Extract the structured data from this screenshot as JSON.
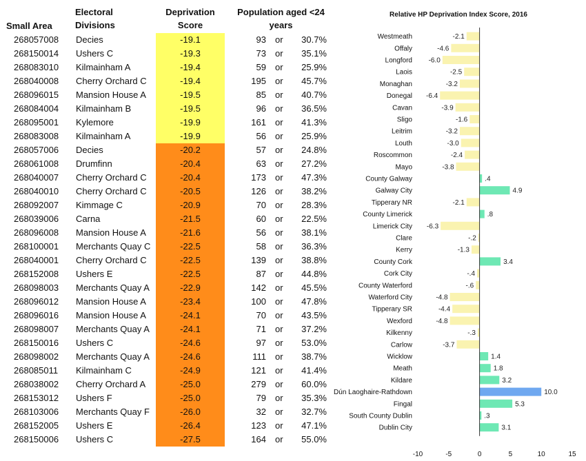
{
  "table": {
    "headers": {
      "small_area": "Small Area",
      "ed_line1": "Electoral",
      "ed_line2": "Divisions",
      "dep_line1": "Deprivation",
      "dep_line2": "Score",
      "pop_line1": "Population aged <24",
      "pop_line2": "years"
    },
    "or_text": "or",
    "highlight_colors": {
      "yellow": "#FFFF66",
      "orange": "#FF8C1A"
    },
    "rows": [
      {
        "area": "268057008",
        "ed": "Decies",
        "score": "-19.1",
        "pop": "93",
        "pct": "30.7%",
        "band": "yellow"
      },
      {
        "area": "268150014",
        "ed": "Ushers C",
        "score": "-19.3",
        "pop": "73",
        "pct": "35.1%",
        "band": "yellow"
      },
      {
        "area": "268083010",
        "ed": "Kilmainham A",
        "score": "-19.4",
        "pop": "59",
        "pct": "25.9%",
        "band": "yellow"
      },
      {
        "area": "268040008",
        "ed": "Cherry Orchard C",
        "score": "-19.4",
        "pop": "195",
        "pct": "45.7%",
        "band": "yellow"
      },
      {
        "area": "268096015",
        "ed": "Mansion House A",
        "score": "-19.5",
        "pop": "85",
        "pct": "40.7%",
        "band": "yellow"
      },
      {
        "area": "268084004",
        "ed": "Kilmainham B",
        "score": "-19.5",
        "pop": "96",
        "pct": "36.5%",
        "band": "yellow"
      },
      {
        "area": "268095001",
        "ed": "Kylemore",
        "score": "-19.9",
        "pop": "161",
        "pct": "41.3%",
        "band": "yellow"
      },
      {
        "area": "268083008",
        "ed": "Kilmainham A",
        "score": "-19.9",
        "pop": "56",
        "pct": "25.9%",
        "band": "yellow"
      },
      {
        "area": "268057006",
        "ed": "Decies",
        "score": "-20.2",
        "pop": "57",
        "pct": "24.8%",
        "band": "orange"
      },
      {
        "area": "268061008",
        "ed": "Drumfinn",
        "score": "-20.4",
        "pop": "63",
        "pct": "27.2%",
        "band": "orange"
      },
      {
        "area": "268040007",
        "ed": "Cherry Orchard C",
        "score": "-20.4",
        "pop": "173",
        "pct": "47.3%",
        "band": "orange"
      },
      {
        "area": "268040010",
        "ed": "Cherry Orchard C",
        "score": "-20.5",
        "pop": "126",
        "pct": "38.2%",
        "band": "orange"
      },
      {
        "area": "268092007",
        "ed": "Kimmage C",
        "score": "-20.9",
        "pop": "70",
        "pct": "28.3%",
        "band": "orange"
      },
      {
        "area": "268039006",
        "ed": "Carna",
        "score": "-21.5",
        "pop": "60",
        "pct": "22.5%",
        "band": "orange"
      },
      {
        "area": "268096008",
        "ed": "Mansion House A",
        "score": "-21.6",
        "pop": "56",
        "pct": "38.1%",
        "band": "orange"
      },
      {
        "area": "268100001",
        "ed": "Merchants Quay C",
        "score": "-22.5",
        "pop": "58",
        "pct": "36.3%",
        "band": "orange"
      },
      {
        "area": "268040001",
        "ed": "Cherry Orchard C",
        "score": "-22.5",
        "pop": "139",
        "pct": "38.8%",
        "band": "orange"
      },
      {
        "area": "268152008",
        "ed": "Ushers E",
        "score": "-22.5",
        "pop": "87",
        "pct": "44.8%",
        "band": "orange"
      },
      {
        "area": "268098003",
        "ed": "Merchants Quay A",
        "score": "-22.9",
        "pop": "142",
        "pct": "45.5%",
        "band": "orange"
      },
      {
        "area": "268096012",
        "ed": "Mansion House A",
        "score": "-23.4",
        "pop": "100",
        "pct": "47.8%",
        "band": "orange"
      },
      {
        "area": "268096016",
        "ed": "Mansion House A",
        "score": "-24.1",
        "pop": "70",
        "pct": "43.5%",
        "band": "orange"
      },
      {
        "area": "268098007",
        "ed": "Merchants Quay A",
        "score": "-24.1",
        "pop": "71",
        "pct": "37.2%",
        "band": "orange"
      },
      {
        "area": "268150016",
        "ed": "Ushers C",
        "score": "-24.6",
        "pop": "97",
        "pct": "53.0%",
        "band": "orange"
      },
      {
        "area": "268098002",
        "ed": "Merchants Quay A",
        "score": "-24.6",
        "pop": "111",
        "pct": "38.7%",
        "band": "orange"
      },
      {
        "area": "268085011",
        "ed": "Kilmainham C",
        "score": "-24.9",
        "pop": "121",
        "pct": "41.4%",
        "band": "orange"
      },
      {
        "area": "268038002",
        "ed": "Cherry Orchard A",
        "score": "-25.0",
        "pop": "279",
        "pct": "60.0%",
        "band": "orange"
      },
      {
        "area": "268153012",
        "ed": "Ushers F",
        "score": "-25.0",
        "pop": "79",
        "pct": "35.3%",
        "band": "orange"
      },
      {
        "area": "268103006",
        "ed": "Merchants Quay F",
        "score": "-26.0",
        "pop": "32",
        "pct": "32.7%",
        "band": "orange"
      },
      {
        "area": "268152005",
        "ed": "Ushers E",
        "score": "-26.4",
        "pop": "123",
        "pct": "47.1%",
        "band": "orange"
      },
      {
        "area": "268150006",
        "ed": "Ushers C",
        "score": "-27.5",
        "pop": "164",
        "pct": "55.0%",
        "band": "orange"
      }
    ]
  },
  "chart_data": {
    "type": "bar",
    "orientation": "horizontal",
    "title": "Relative HP Deprivation Index Score, 2016",
    "xlim": [
      -10,
      15
    ],
    "xticks": [
      "-10",
      "-5",
      "0",
      "5",
      "10",
      "15"
    ],
    "grid": false,
    "colors": {
      "negative": "#FAF3B0",
      "positive": "#6EE8B4",
      "highlight": "#6FA8F0"
    },
    "categories": [
      "Westmeath",
      "Offaly",
      "Longford",
      "Laois",
      "Monaghan",
      "Donegal",
      "Cavan",
      "Sligo",
      "Leitrim",
      "Louth",
      "Roscommon",
      "Mayo",
      "County Galway",
      "Galway City",
      "Tipperary NR",
      "County Limerick",
      "Limerick City",
      "Clare",
      "Kerry",
      "County Cork",
      "Cork City",
      "County Waterford",
      "Waterford City",
      "Tipperary SR",
      "Wexford",
      "Kilkenny",
      "Carlow",
      "Wicklow",
      "Meath",
      "Kildare",
      "Dún Laoghaire-Rathdown",
      "Fingal",
      "South County Dublin",
      "Dublin City"
    ],
    "values": [
      -2.1,
      -4.6,
      -6.0,
      -2.5,
      -3.2,
      -6.4,
      -3.9,
      -1.6,
      -3.2,
      -3.0,
      -2.4,
      -3.8,
      0.4,
      4.9,
      -2.1,
      0.8,
      -6.3,
      -0.2,
      -1.3,
      3.4,
      -0.4,
      -0.6,
      -4.8,
      -4.4,
      -4.8,
      -0.3,
      -3.7,
      1.4,
      1.8,
      3.2,
      10.0,
      5.3,
      0.3,
      3.1
    ],
    "value_labels": [
      "-2.1",
      "-4.6",
      "-6.0",
      "-2.5",
      "-3.2",
      "-6.4",
      "-3.9",
      "-1.6",
      "-3.2",
      "-3.0",
      "-2.4",
      "-3.8",
      ".4",
      "4.9",
      "-2.1",
      ".8",
      "-6.3",
      "-.2",
      "-1.3",
      "3.4",
      "-.4",
      "-.6",
      "-4.8",
      "-4.4",
      "-4.8",
      "-.3",
      "-3.7",
      "1.4",
      "1.8",
      "3.2",
      "10.0",
      "5.3",
      ".3",
      "3.1"
    ],
    "highlight_category": "Dún Laoghaire-Rathdown"
  }
}
